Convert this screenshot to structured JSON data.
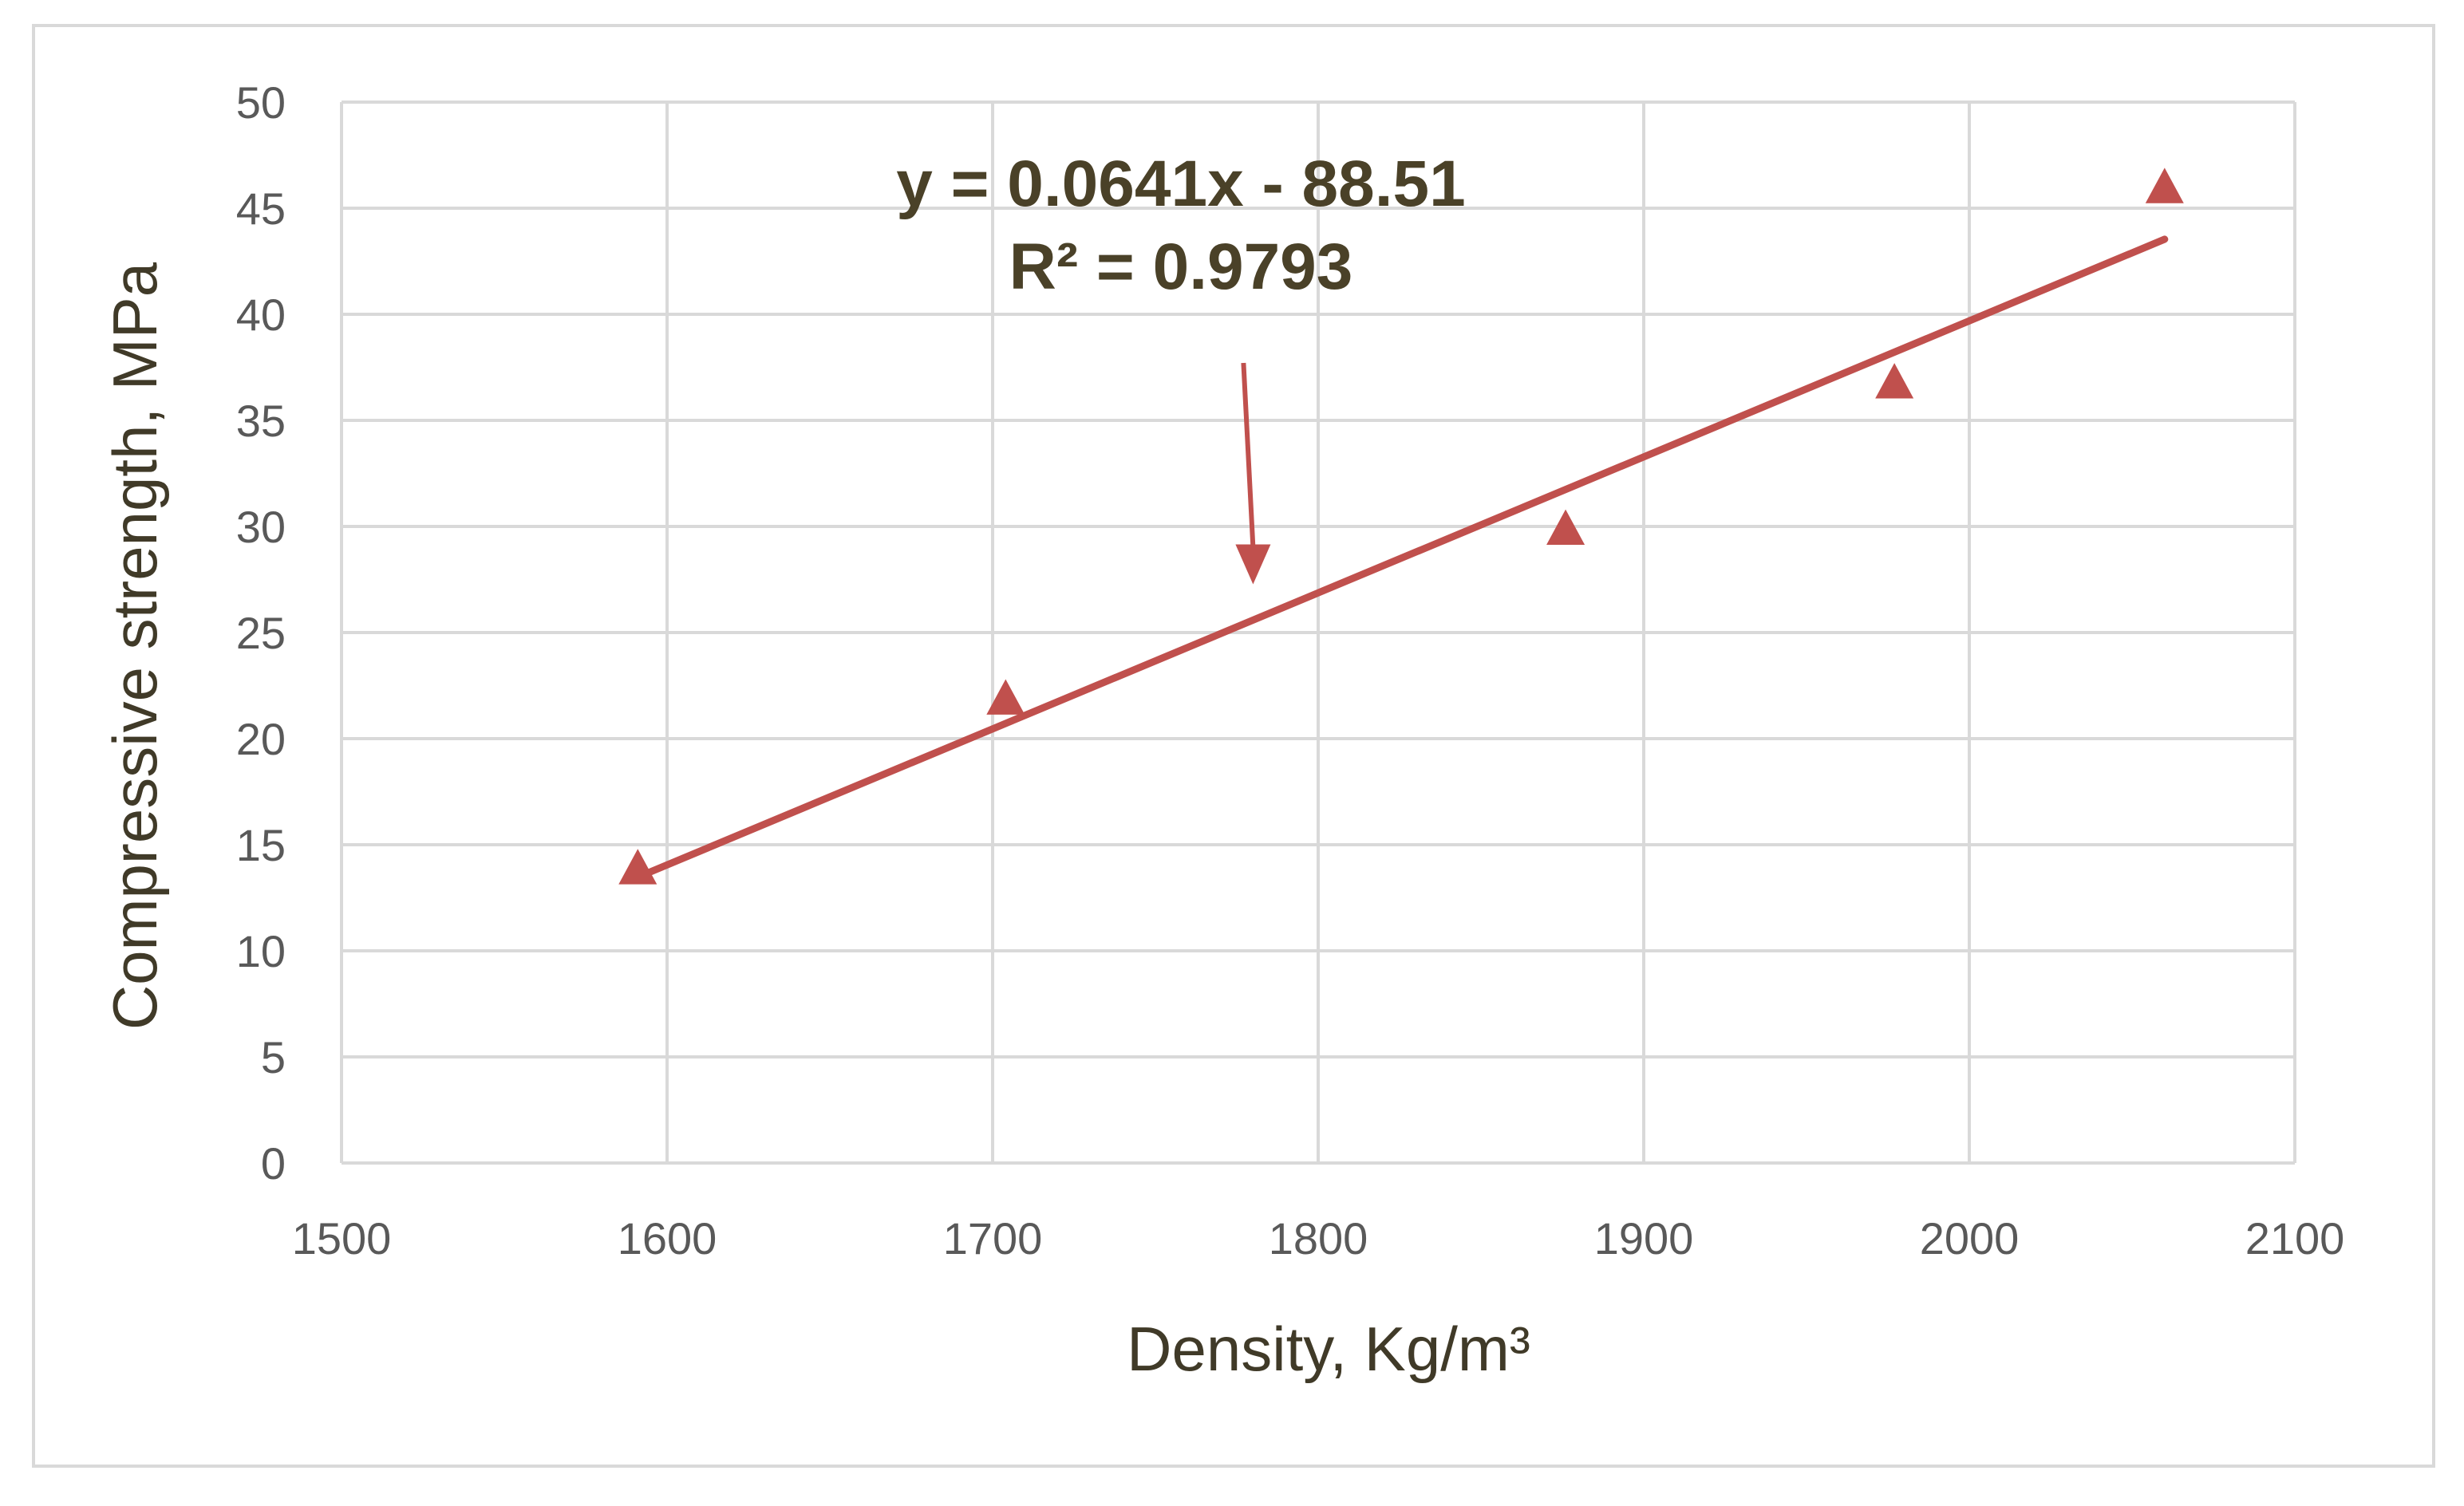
{
  "chart_data": {
    "type": "scatter",
    "xlabel": "Density, Kg/m³",
    "ylabel": "Compressive strength, MPa",
    "xlim": [
      1500,
      2100
    ],
    "ylim": [
      0,
      50
    ],
    "x_ticks": [
      1500,
      1600,
      1700,
      1800,
      1900,
      2000,
      2100
    ],
    "y_ticks": [
      0,
      5,
      10,
      15,
      20,
      25,
      30,
      35,
      40,
      45,
      50
    ],
    "grid": true,
    "series": [
      {
        "marker": "triangle",
        "color": "#c0504d",
        "points": [
          {
            "x": 1591,
            "y": 13.9
          },
          {
            "x": 1704,
            "y": 21.9
          },
          {
            "x": 1876,
            "y": 29.9
          },
          {
            "x": 1977,
            "y": 36.8
          },
          {
            "x": 2060,
            "y": 46.0
          }
        ]
      }
    ],
    "trendline": {
      "type": "linear",
      "slope": 0.0641,
      "intercept": -88.51,
      "x_range": [
        1591,
        2060
      ],
      "color": "#c0504d"
    },
    "annotations": {
      "equation": "y = 0.0641x - 88.51",
      "r_squared": "R² = 0.9793",
      "arrow_target": {
        "x": 1780,
        "y": 27.5
      }
    }
  },
  "colors": {
    "grid": "#d9d9d9",
    "tick_text": "#595959",
    "title_text": "#403a28"
  }
}
